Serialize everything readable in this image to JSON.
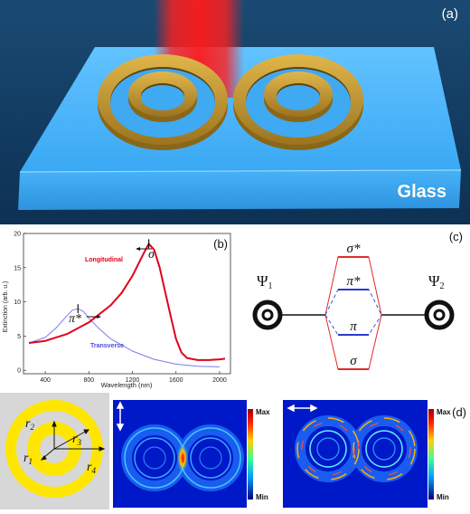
{
  "panel_a": {
    "label": "(a)",
    "substrate_label": "Glass"
  },
  "panel_b": {
    "label": "(b)",
    "chart_data": {
      "type": "line",
      "xlabel": "Wavelength (nm)",
      "ylabel": "Extinction (arb. u.)",
      "xlim": [
        200,
        2100
      ],
      "ylim": [
        -0.5,
        20
      ],
      "x_ticks": [
        "400",
        "800",
        "1200",
        "1600",
        "2000"
      ],
      "y_ticks": [
        "0",
        "5",
        "10",
        "15",
        "20"
      ],
      "series": [
        {
          "name": "Longitudinal",
          "color": "#e0001a",
          "x": [
            250,
            400,
            600,
            800,
            1000,
            1100,
            1200,
            1300,
            1350,
            1400,
            1450,
            1500,
            1550,
            1600,
            1650,
            1700,
            1800,
            1900,
            2000,
            2050
          ],
          "y": [
            4.0,
            4.3,
            5.3,
            7.0,
            9.5,
            11.3,
            13.8,
            17.0,
            18.5,
            17.6,
            15.0,
            11.5,
            8.0,
            4.6,
            2.6,
            1.8,
            1.5,
            1.5,
            1.6,
            1.7
          ]
        },
        {
          "name": "Transverse",
          "color": "#7a7ae8",
          "x": [
            250,
            400,
            500,
            600,
            650,
            700,
            750,
            800,
            900,
            1000,
            1200,
            1400,
            1600,
            1800,
            2000
          ],
          "y": [
            4.0,
            4.8,
            6.2,
            8.0,
            8.8,
            9.0,
            8.6,
            7.6,
            6.0,
            4.6,
            2.8,
            1.6,
            0.9,
            0.6,
            0.5
          ]
        }
      ],
      "annotations": [
        "σ",
        "π*"
      ]
    }
  },
  "panel_c": {
    "label": "(c)",
    "psi1": "Ψ",
    "psi1_sub": "1",
    "psi2": "Ψ",
    "psi2_sub": "2",
    "levels": [
      "σ*",
      "π*",
      "π",
      "σ"
    ]
  },
  "panel_d": {
    "label": "(d)",
    "radii": [
      "r",
      "r",
      "r",
      "r"
    ],
    "radii_subs": [
      "2",
      "1",
      "3",
      "4"
    ],
    "colorbar_max": "Max",
    "colorbar_min": "Min"
  }
}
